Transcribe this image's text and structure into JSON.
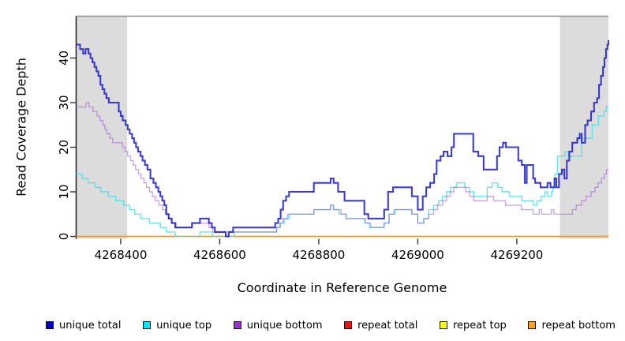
{
  "chart_data": {
    "type": "line",
    "subtype": "step-after",
    "title": "",
    "xlabel": "Coordinate in Reference Genome",
    "ylabel": "Read Coverage Depth",
    "xlim": [
      4268310,
      4269385
    ],
    "ylim": [
      0,
      49.5
    ],
    "grid": false,
    "legend_position": "bottom",
    "x_ticks": [
      4268400,
      4268600,
      4268800,
      4269000,
      4269200
    ],
    "x_tick_labels": [
      "4268400",
      "4268600",
      "4268800",
      "4269000",
      "4269200"
    ],
    "y_ticks": [
      0,
      10,
      20,
      30,
      40
    ],
    "y_tick_labels": [
      "0",
      "10",
      "20",
      "30",
      "40"
    ],
    "colors": {
      "background": "#ffffff",
      "band": "#dcdcdc",
      "axis_line": "#2a2a2a",
      "top_border": "#8d8d8d",
      "tick": "#333333",
      "text": "#000000"
    },
    "highlight_regions": [
      {
        "name": "left-shaded-band",
        "from": 4268310,
        "to": 4268413
      },
      {
        "name": "right-shaded-band",
        "from": 4269287,
        "to": 4269385
      }
    ],
    "series": [
      {
        "name": "repeat total",
        "color": "#dd1111",
        "width": 1.3,
        "opacity": 1,
        "points": [
          [
            4268310,
            0
          ],
          [
            4269385,
            0
          ]
        ]
      },
      {
        "name": "repeat top",
        "color": "#ffff00",
        "width": 1.3,
        "opacity": 1,
        "points": [
          [
            4268310,
            0
          ],
          [
            4269385,
            0
          ]
        ]
      },
      {
        "name": "repeat bottom",
        "color": "#ff9900",
        "width": 1.6,
        "opacity": 1,
        "points": [
          [
            4268310,
            0
          ],
          [
            4269385,
            0
          ]
        ]
      },
      {
        "name": "unique top",
        "color": "#40e0e8",
        "width": 1.4,
        "opacity": 0.8,
        "points": [
          [
            4268310,
            14
          ],
          [
            4268322,
            13
          ],
          [
            4268334,
            12
          ],
          [
            4268348,
            11
          ],
          [
            4268360,
            10
          ],
          [
            4268375,
            9
          ],
          [
            4268390,
            8
          ],
          [
            4268406,
            7
          ],
          [
            4268418,
            6
          ],
          [
            4268428,
            5
          ],
          [
            4268440,
            4
          ],
          [
            4268458,
            3
          ],
          [
            4268480,
            2
          ],
          [
            4268492,
            1
          ],
          [
            4268510,
            0
          ],
          [
            4268560,
            1
          ],
          [
            4268585,
            0
          ],
          [
            4268630,
            1
          ],
          [
            4268715,
            2
          ],
          [
            4268722,
            3
          ],
          [
            4268730,
            4
          ],
          [
            4268740,
            5
          ],
          [
            4268790,
            6
          ],
          [
            4268824,
            7
          ],
          [
            4268830,
            6
          ],
          [
            4268841,
            5
          ],
          [
            4268855,
            4
          ],
          [
            4268892,
            3
          ],
          [
            4268902,
            2
          ],
          [
            4268932,
            3
          ],
          [
            4268942,
            5
          ],
          [
            4268954,
            6
          ],
          [
            4268988,
            5
          ],
          [
            4269000,
            3
          ],
          [
            4269012,
            4
          ],
          [
            4269022,
            6
          ],
          [
            4269032,
            7
          ],
          [
            4269042,
            8
          ],
          [
            4269050,
            9
          ],
          [
            4269058,
            10
          ],
          [
            4269066,
            11
          ],
          [
            4269078,
            12
          ],
          [
            4269095,
            11
          ],
          [
            4269105,
            10
          ],
          [
            4269113,
            9
          ],
          [
            4269140,
            11
          ],
          [
            4269150,
            12
          ],
          [
            4269161,
            11
          ],
          [
            4269170,
            10
          ],
          [
            4269185,
            9
          ],
          [
            4269210,
            8
          ],
          [
            4269233,
            7
          ],
          [
            4269241,
            8
          ],
          [
            4269249,
            9
          ],
          [
            4269257,
            10
          ],
          [
            4269262,
            9
          ],
          [
            4269270,
            10
          ],
          [
            4269273,
            11
          ],
          [
            4269277,
            14
          ],
          [
            4269282,
            18
          ],
          [
            4269297,
            19
          ],
          [
            4269304,
            18
          ],
          [
            4269331,
            22
          ],
          [
            4269352,
            25
          ],
          [
            4269365,
            27
          ],
          [
            4269376,
            28
          ],
          [
            4269381,
            29
          ]
        ]
      },
      {
        "name": "unique bottom",
        "color": "#9a4fd0",
        "width": 1.4,
        "opacity": 0.5,
        "points": [
          [
            4268310,
            29
          ],
          [
            4268330,
            30
          ],
          [
            4268336,
            29
          ],
          [
            4268344,
            28
          ],
          [
            4268352,
            27
          ],
          [
            4268358,
            26
          ],
          [
            4268364,
            25
          ],
          [
            4268368,
            24
          ],
          [
            4268372,
            23
          ],
          [
            4268378,
            22
          ],
          [
            4268384,
            21
          ],
          [
            4268404,
            20
          ],
          [
            4268409,
            19
          ],
          [
            4268414,
            18
          ],
          [
            4268420,
            17
          ],
          [
            4268425,
            16
          ],
          [
            4268430,
            15
          ],
          [
            4268436,
            14
          ],
          [
            4268441,
            13
          ],
          [
            4268447,
            12
          ],
          [
            4268452,
            11
          ],
          [
            4268458,
            10
          ],
          [
            4268464,
            9
          ],
          [
            4268470,
            8
          ],
          [
            4268477,
            7
          ],
          [
            4268484,
            6
          ],
          [
            4268490,
            5
          ],
          [
            4268496,
            4
          ],
          [
            4268503,
            3
          ],
          [
            4268512,
            2
          ],
          [
            4268544,
            3
          ],
          [
            4268578,
            2
          ],
          [
            4268586,
            1
          ],
          [
            4268612,
            0
          ],
          [
            4268618,
            1
          ],
          [
            4268715,
            2
          ],
          [
            4268722,
            3
          ],
          [
            4268728,
            4
          ],
          [
            4268737,
            5
          ],
          [
            4268790,
            6
          ],
          [
            4268824,
            7
          ],
          [
            4268830,
            6
          ],
          [
            4268845,
            5
          ],
          [
            4268855,
            4
          ],
          [
            4268895,
            3
          ],
          [
            4268905,
            2
          ],
          [
            4268932,
            3
          ],
          [
            4268942,
            5
          ],
          [
            4268952,
            6
          ],
          [
            4268988,
            5
          ],
          [
            4269000,
            3
          ],
          [
            4269012,
            4
          ],
          [
            4269022,
            5
          ],
          [
            4269032,
            6
          ],
          [
            4269040,
            7
          ],
          [
            4269050,
            8
          ],
          [
            4269058,
            9
          ],
          [
            4269066,
            10
          ],
          [
            4269073,
            11
          ],
          [
            4269097,
            10
          ],
          [
            4269105,
            9
          ],
          [
            4269113,
            8
          ],
          [
            4269140,
            9
          ],
          [
            4269153,
            8
          ],
          [
            4269177,
            7
          ],
          [
            4269209,
            6
          ],
          [
            4269233,
            5
          ],
          [
            4269245,
            6
          ],
          [
            4269250,
            5
          ],
          [
            4269270,
            6
          ],
          [
            4269275,
            5
          ],
          [
            4269312,
            6
          ],
          [
            4269320,
            7
          ],
          [
            4269331,
            8
          ],
          [
            4269340,
            9
          ],
          [
            4269350,
            10
          ],
          [
            4269358,
            11
          ],
          [
            4269364,
            12
          ],
          [
            4269371,
            13
          ],
          [
            4269377,
            14
          ],
          [
            4269381,
            15
          ]
        ]
      },
      {
        "name": "unique total",
        "color": "#2222cc",
        "width": 2.1,
        "opacity": 0.88,
        "points": [
          [
            4268310,
            43
          ],
          [
            4268318,
            42
          ],
          [
            4268324,
            41
          ],
          [
            4268329,
            42
          ],
          [
            4268335,
            41
          ],
          [
            4268339,
            40
          ],
          [
            4268343,
            39
          ],
          [
            4268347,
            38
          ],
          [
            4268351,
            37
          ],
          [
            4268355,
            36
          ],
          [
            4268359,
            34
          ],
          [
            4268363,
            33
          ],
          [
            4268367,
            32
          ],
          [
            4268371,
            31
          ],
          [
            4268376,
            30
          ],
          [
            4268396,
            28
          ],
          [
            4268400,
            27
          ],
          [
            4268404,
            26
          ],
          [
            4268410,
            25
          ],
          [
            4268414,
            24
          ],
          [
            4268418,
            23
          ],
          [
            4268423,
            22
          ],
          [
            4268427,
            21
          ],
          [
            4268431,
            20
          ],
          [
            4268435,
            19
          ],
          [
            4268440,
            18
          ],
          [
            4268444,
            17
          ],
          [
            4268449,
            16
          ],
          [
            4268454,
            15
          ],
          [
            4268460,
            13
          ],
          [
            4268466,
            12
          ],
          [
            4268471,
            11
          ],
          [
            4268476,
            10
          ],
          [
            4268480,
            9
          ],
          [
            4268484,
            8
          ],
          [
            4268488,
            7
          ],
          [
            4268492,
            5
          ],
          [
            4268497,
            4
          ],
          [
            4268503,
            3
          ],
          [
            4268510,
            2
          ],
          [
            4268544,
            3
          ],
          [
            4268560,
            4
          ],
          [
            4268578,
            3
          ],
          [
            4268584,
            2
          ],
          [
            4268590,
            1
          ],
          [
            4268612,
            0
          ],
          [
            4268618,
            1
          ],
          [
            4268627,
            2
          ],
          [
            4268712,
            3
          ],
          [
            4268718,
            4
          ],
          [
            4268723,
            6
          ],
          [
            4268728,
            8
          ],
          [
            4268734,
            9
          ],
          [
            4268740,
            10
          ],
          [
            4268790,
            12
          ],
          [
            4268824,
            13
          ],
          [
            4268830,
            12
          ],
          [
            4268839,
            10
          ],
          [
            4268852,
            8
          ],
          [
            4268892,
            5
          ],
          [
            4268900,
            4
          ],
          [
            4268932,
            6
          ],
          [
            4268940,
            10
          ],
          [
            4268950,
            11
          ],
          [
            4268988,
            9
          ],
          [
            4269000,
            6
          ],
          [
            4269010,
            9
          ],
          [
            4269017,
            11
          ],
          [
            4269025,
            12
          ],
          [
            4269033,
            14
          ],
          [
            4269038,
            17
          ],
          [
            4269046,
            18
          ],
          [
            4269052,
            19
          ],
          [
            4269060,
            18
          ],
          [
            4269068,
            20
          ],
          [
            4269073,
            23
          ],
          [
            4269112,
            19
          ],
          [
            4269122,
            18
          ],
          [
            4269133,
            15
          ],
          [
            4269160,
            18
          ],
          [
            4269165,
            20
          ],
          [
            4269172,
            21
          ],
          [
            4269178,
            20
          ],
          [
            4269203,
            17
          ],
          [
            4269210,
            16
          ],
          [
            4269216,
            12
          ],
          [
            4269220,
            16
          ],
          [
            4269233,
            13
          ],
          [
            4269237,
            12
          ],
          [
            4269248,
            11
          ],
          [
            4269262,
            12
          ],
          [
            4269268,
            11
          ],
          [
            4269276,
            13
          ],
          [
            4269280,
            11
          ],
          [
            4269285,
            14
          ],
          [
            4269291,
            15
          ],
          [
            4269296,
            13
          ],
          [
            4269301,
            17
          ],
          [
            4269306,
            19
          ],
          [
            4269312,
            21
          ],
          [
            4269322,
            22
          ],
          [
            4269327,
            23
          ],
          [
            4269331,
            21
          ],
          [
            4269338,
            25
          ],
          [
            4269343,
            26
          ],
          [
            4269350,
            28
          ],
          [
            4269356,
            30
          ],
          [
            4269362,
            31
          ],
          [
            4269366,
            34
          ],
          [
            4269370,
            36
          ],
          [
            4269374,
            38
          ],
          [
            4269377,
            40
          ],
          [
            4269380,
            42
          ],
          [
            4269383,
            43
          ],
          [
            4269385,
            44
          ]
        ]
      }
    ]
  },
  "legend": {
    "items": [
      {
        "label": "unique total",
        "color": "#0000cc"
      },
      {
        "label": "unique top",
        "color": "#00e5ee"
      },
      {
        "label": "unique bottom",
        "color": "#9932cc"
      },
      {
        "label": "repeat total",
        "color": "#ee1111"
      },
      {
        "label": "repeat top",
        "color": "#ffff00"
      },
      {
        "label": "repeat bottom",
        "color": "#ffa022"
      }
    ]
  }
}
